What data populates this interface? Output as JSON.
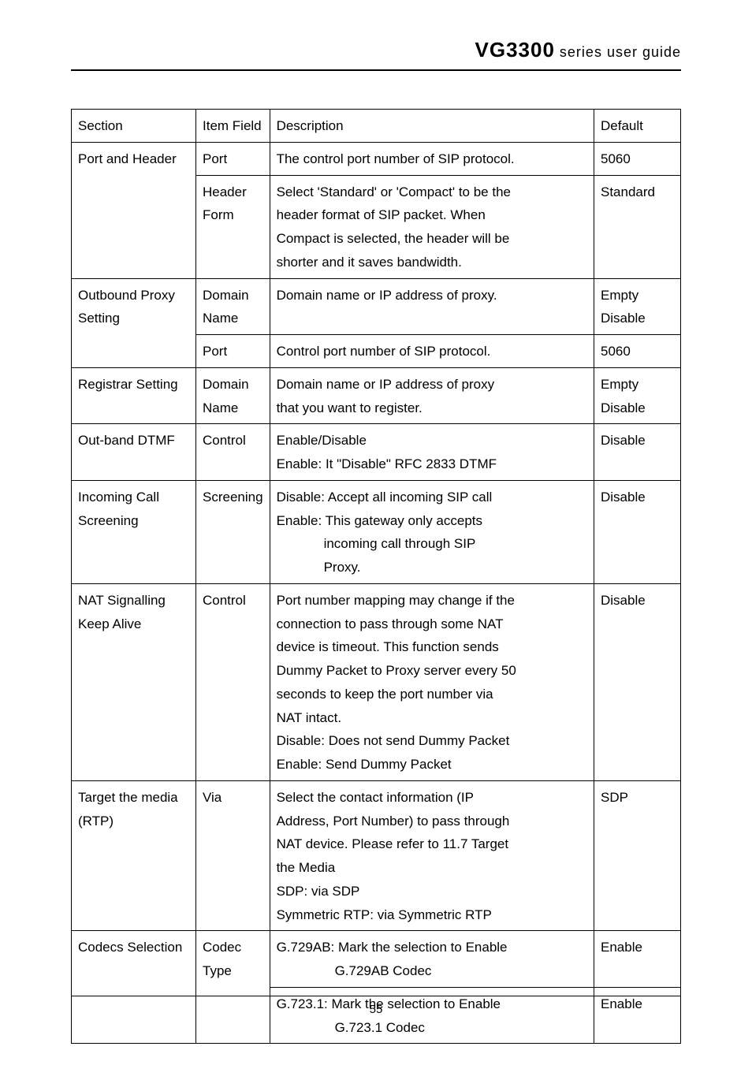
{
  "header": {
    "model": "VG3300",
    "tagline": " series user guide"
  },
  "table": {
    "head": {
      "section": "Section",
      "item": "Item Field",
      "desc": "Description",
      "default": "Default"
    },
    "rows": {
      "port_header": {
        "section": "Port and Header",
        "port": {
          "item": "Port",
          "desc": "The control port number of SIP protocol.",
          "default": "5060"
        },
        "header": {
          "item_l1": "Header",
          "item_l2": "Form",
          "desc_l1": "Select 'Standard' or 'Compact' to be the",
          "desc_l2": "header format of SIP packet. When",
          "desc_l3": "Compact is selected, the header will be",
          "desc_l4": "shorter and it saves bandwidth.",
          "default": "Standard"
        }
      },
      "outbound_proxy": {
        "section_l1": "Outbound Proxy",
        "section_l2": "Setting",
        "domain": {
          "item_l1": "Domain",
          "item_l2": "Name",
          "desc": "Domain name or IP address of proxy.",
          "default_l1": "Empty",
          "default_l2": "Disable"
        },
        "port": {
          "item": "Port",
          "desc": "Control port number of SIP protocol.",
          "default": "5060"
        }
      },
      "registrar": {
        "section": "Registrar Setting",
        "item_l1": "Domain",
        "item_l2": "Name",
        "desc_l1": "Domain name or IP address of proxy",
        "desc_l2": "that you want to register.",
        "default_l1": "Empty",
        "default_l2": "Disable"
      },
      "out_band_dtmf": {
        "section": "Out-band DTMF",
        "item": "Control",
        "desc_l1": "Enable/Disable",
        "desc_l2": "Enable: It \"Disable\" RFC 2833 DTMF",
        "default": "Disable"
      },
      "incoming_call": {
        "section_l1": "Incoming Call",
        "section_l2": "Screening",
        "item": "Screening",
        "desc_l1": "Disable: Accept all incoming SIP call",
        "desc_l2": "Enable: This gateway only accepts",
        "desc_l3": "incoming call through SIP",
        "desc_l4": "Proxy.",
        "default": "Disable"
      },
      "nat_signalling": {
        "section_l1": "NAT Signalling",
        "section_l2": "Keep Alive",
        "item": "Control",
        "desc_l1": "Port number mapping may change if the",
        "desc_l2": "connection to pass through some NAT",
        "desc_l3": "device is timeout. This function sends",
        "desc_l4": "Dummy Packet to Proxy server every 50",
        "desc_l5": "seconds to keep the port number via",
        "desc_l6": "NAT intact.",
        "desc_l7": "Disable: Does not send Dummy Packet",
        "desc_l8": "Enable: Send Dummy Packet",
        "default": "Disable"
      },
      "target_media": {
        "section_l1": "Target the media",
        "section_l2": "(RTP)",
        "item": "Via",
        "desc_l1": "Select the contact information (IP",
        "desc_l2": "Address, Port Number) to pass through",
        "desc_l3": "NAT device. Please refer to 11.7 Target",
        "desc_l4": "the Media",
        "desc_l5": "SDP: via SDP",
        "desc_l6": "Symmetric RTP: via Symmetric RTP",
        "default": "SDP"
      },
      "codecs": {
        "section": "Codecs Selection",
        "item_l1": "Codec",
        "item_l2": "Type",
        "row1": {
          "desc_l1": "G.729AB: Mark the selection to Enable",
          "desc_l2": "G.729AB Codec",
          "default": "Enable"
        },
        "row2": {
          "desc_l1": "G.723.1:   Mark the selection to Enable",
          "desc_l2": "G.723.1 Codec",
          "default": "Enable"
        }
      }
    }
  },
  "footer": {
    "page": "55"
  }
}
